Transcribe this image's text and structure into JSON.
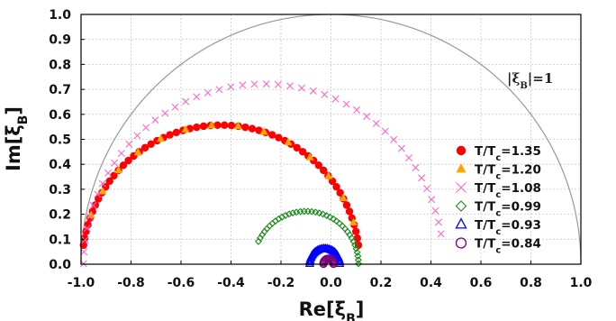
{
  "chart_data": {
    "type": "scatter",
    "xlabel": "Re[ξB]",
    "ylabel": "Im[ξB]",
    "xlim": [
      -1.0,
      1.0
    ],
    "ylim": [
      0.0,
      1.0
    ],
    "xticks": [
      "-1.0",
      "-0.8",
      "-0.6",
      "-0.4",
      "-0.2",
      "0.0",
      "0.2",
      "0.4",
      "0.6",
      "0.8",
      "1.0"
    ],
    "yticks": [
      "0.0",
      "0.1",
      "0.2",
      "0.3",
      "0.4",
      "0.5",
      "0.6",
      "0.7",
      "0.8",
      "0.9",
      "1.0"
    ],
    "grid": true,
    "legend_position": "right",
    "annotation": "|ξB|=1",
    "reference_curve": "unit semicircle |ξB|=1",
    "series": [
      {
        "name": "T/Tc=1.35",
        "marker": "filled-circle",
        "color": "#ff0000",
        "arc": {
          "center": -0.44,
          "radius": 0.555,
          "x_from": -0.99,
          "x_to": 0.11,
          "points": 58
        }
      },
      {
        "name": "T/Tc=1.20",
        "marker": "filled-triangle",
        "color": "#ffa500",
        "arc": {
          "center": -0.44,
          "radius": 0.555,
          "x_from": -0.96,
          "x_to": 0.09,
          "points": 14
        }
      },
      {
        "name": "T/Tc=1.08",
        "marker": "cross",
        "color": "#ff66cc",
        "arc": {
          "center": -0.27,
          "radius": 0.72,
          "x_from": -0.99,
          "x_to": 0.44,
          "points": 46
        }
      },
      {
        "name": "T/Tc=0.99",
        "marker": "open-diamond",
        "color": "#1a8a1a",
        "arc": {
          "center": -0.1,
          "radius": 0.21,
          "x_from": -0.29,
          "x_to": 0.11,
          "points": 38
        }
      },
      {
        "name": "T/Tc=0.93",
        "marker": "open-triangle",
        "color": "#0000ff",
        "arc": {
          "center": -0.025,
          "radius": 0.06,
          "x_from": -0.085,
          "x_to": 0.035,
          "points": 30
        }
      },
      {
        "name": "T/Tc=0.84",
        "marker": "open-circle",
        "color": "#7a007a",
        "arc": {
          "center": -0.01,
          "radius": 0.02,
          "x_from": -0.03,
          "x_to": 0.01,
          "points": 12
        }
      }
    ]
  }
}
